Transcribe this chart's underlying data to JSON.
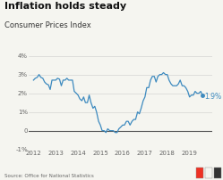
{
  "title": "Inflation holds steady",
  "subtitle": "Consumer Prices Index",
  "source": "Source: Office for National Statistics",
  "line_color": "#3d8abf",
  "background_color": "#f5f5f0",
  "ylim": [
    -1,
    4
  ],
  "yticks": [
    -1,
    0,
    1,
    2,
    3,
    4
  ],
  "ytick_labels": [
    "-1%",
    "0",
    "1%",
    "2%",
    "3%",
    "4%"
  ],
  "xlim_start": 2011.8,
  "xlim_end": 2020.0,
  "annotation_value": "1.9%",
  "data": [
    [
      2012.0,
      2.7
    ],
    [
      2012.08,
      2.8
    ],
    [
      2012.17,
      2.85
    ],
    [
      2012.25,
      3.0
    ],
    [
      2012.33,
      2.85
    ],
    [
      2012.42,
      2.8
    ],
    [
      2012.5,
      2.6
    ],
    [
      2012.58,
      2.5
    ],
    [
      2012.67,
      2.45
    ],
    [
      2012.75,
      2.2
    ],
    [
      2012.83,
      2.7
    ],
    [
      2012.92,
      2.7
    ],
    [
      2013.0,
      2.7
    ],
    [
      2013.08,
      2.8
    ],
    [
      2013.17,
      2.75
    ],
    [
      2013.25,
      2.4
    ],
    [
      2013.33,
      2.7
    ],
    [
      2013.42,
      2.7
    ],
    [
      2013.5,
      2.8
    ],
    [
      2013.58,
      2.7
    ],
    [
      2013.67,
      2.7
    ],
    [
      2013.75,
      2.7
    ],
    [
      2013.83,
      2.1
    ],
    [
      2013.92,
      2.0
    ],
    [
      2014.0,
      1.9
    ],
    [
      2014.08,
      1.7
    ],
    [
      2014.17,
      1.6
    ],
    [
      2014.25,
      1.8
    ],
    [
      2014.33,
      1.5
    ],
    [
      2014.42,
      1.5
    ],
    [
      2014.5,
      1.9
    ],
    [
      2014.58,
      1.5
    ],
    [
      2014.67,
      1.2
    ],
    [
      2014.75,
      1.3
    ],
    [
      2014.83,
      1.0
    ],
    [
      2014.92,
      0.5
    ],
    [
      2015.0,
      0.3
    ],
    [
      2015.08,
      0.0
    ],
    [
      2015.17,
      0.0
    ],
    [
      2015.25,
      -0.1
    ],
    [
      2015.33,
      0.1
    ],
    [
      2015.42,
      0.0
    ],
    [
      2015.5,
      0.0
    ],
    [
      2015.58,
      0.0
    ],
    [
      2015.67,
      -0.1
    ],
    [
      2015.75,
      -0.1
    ],
    [
      2015.83,
      0.1
    ],
    [
      2015.92,
      0.2
    ],
    [
      2016.0,
      0.3
    ],
    [
      2016.08,
      0.3
    ],
    [
      2016.17,
      0.5
    ],
    [
      2016.25,
      0.5
    ],
    [
      2016.33,
      0.3
    ],
    [
      2016.42,
      0.5
    ],
    [
      2016.5,
      0.6
    ],
    [
      2016.58,
      0.6
    ],
    [
      2016.67,
      1.0
    ],
    [
      2016.75,
      0.9
    ],
    [
      2016.83,
      1.2
    ],
    [
      2016.92,
      1.6
    ],
    [
      2017.0,
      1.8
    ],
    [
      2017.08,
      2.3
    ],
    [
      2017.17,
      2.3
    ],
    [
      2017.25,
      2.7
    ],
    [
      2017.33,
      2.9
    ],
    [
      2017.42,
      2.9
    ],
    [
      2017.5,
      2.6
    ],
    [
      2017.58,
      2.9
    ],
    [
      2017.67,
      3.0
    ],
    [
      2017.75,
      3.0
    ],
    [
      2017.83,
      3.1
    ],
    [
      2017.92,
      3.0
    ],
    [
      2018.0,
      3.0
    ],
    [
      2018.08,
      2.7
    ],
    [
      2018.17,
      2.5
    ],
    [
      2018.25,
      2.4
    ],
    [
      2018.33,
      2.4
    ],
    [
      2018.42,
      2.4
    ],
    [
      2018.5,
      2.5
    ],
    [
      2018.58,
      2.7
    ],
    [
      2018.67,
      2.4
    ],
    [
      2018.75,
      2.4
    ],
    [
      2018.83,
      2.3
    ],
    [
      2018.92,
      2.1
    ],
    [
      2019.0,
      1.8
    ],
    [
      2019.08,
      1.9
    ],
    [
      2019.17,
      1.9
    ],
    [
      2019.25,
      2.1
    ],
    [
      2019.33,
      2.0
    ],
    [
      2019.42,
      2.0
    ],
    [
      2019.5,
      2.1
    ],
    [
      2019.58,
      1.9
    ]
  ]
}
